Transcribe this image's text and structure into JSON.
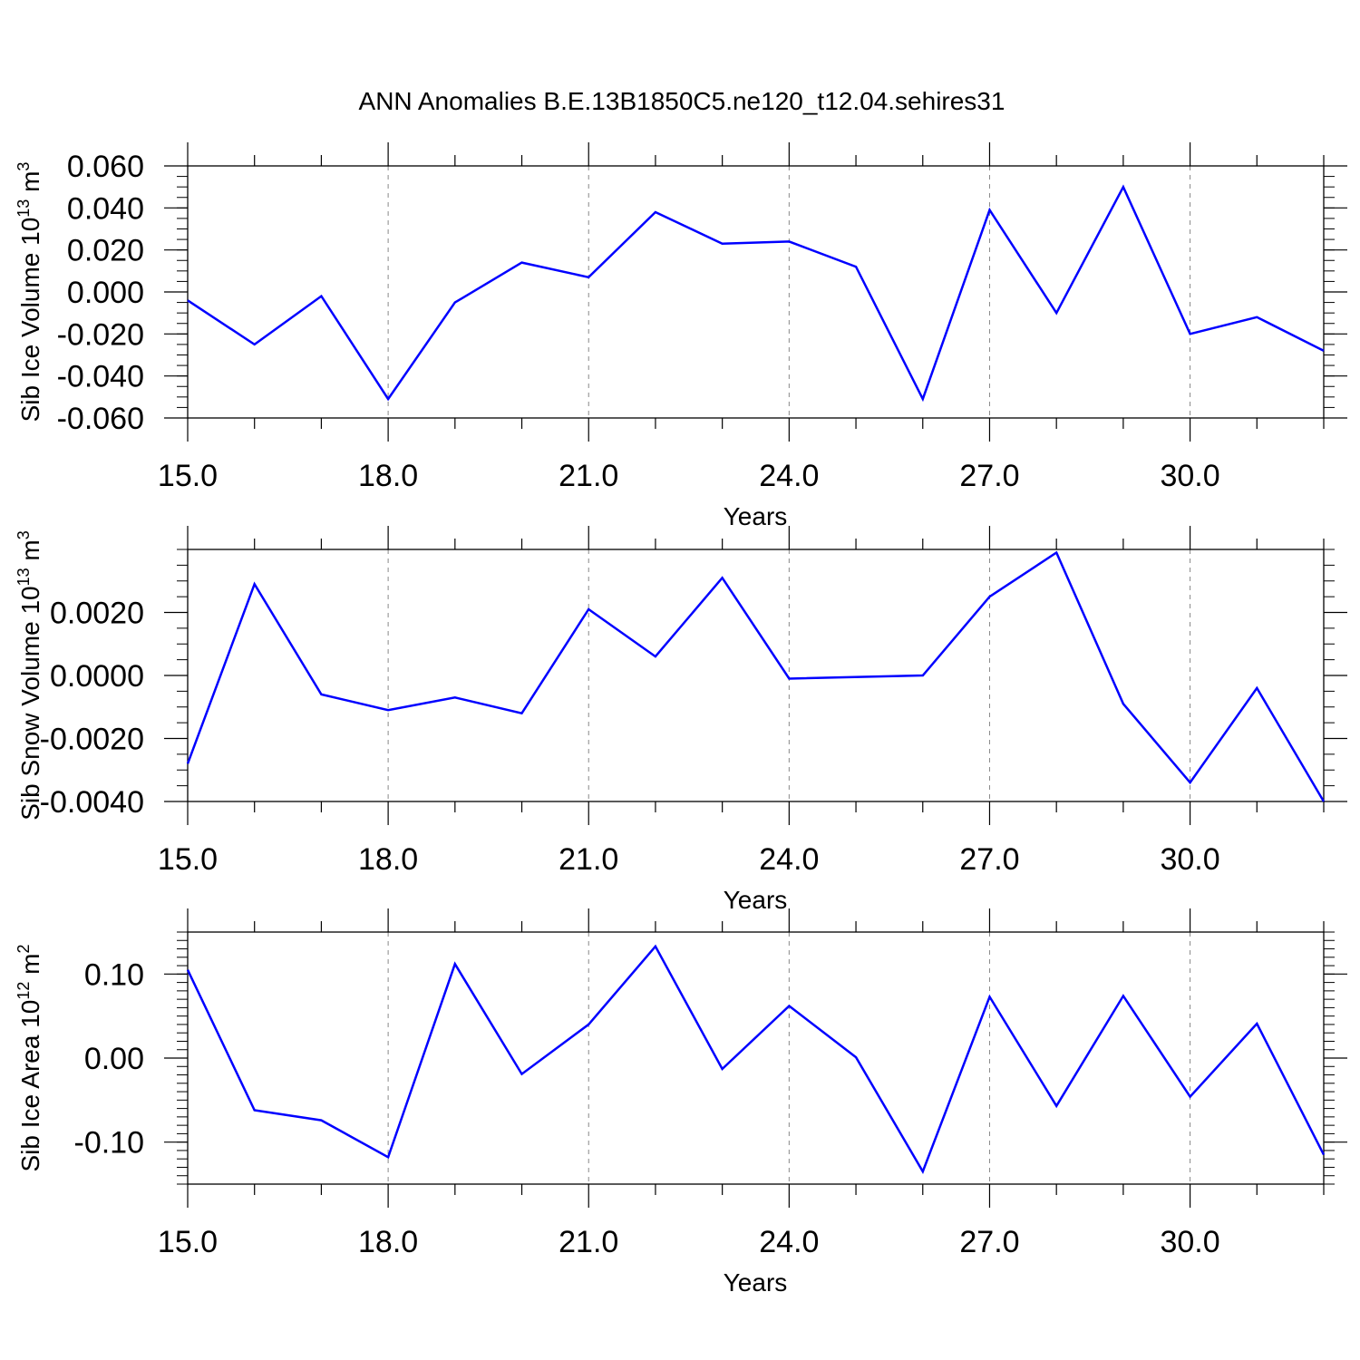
{
  "title": "ANN Anomalies B.E.13B1850C5.ne120_t12.04.sehires31",
  "colors": {
    "line": "#0000ff",
    "axes": "#000000",
    "grid": "#888888"
  },
  "chart_data": [
    {
      "type": "line",
      "xlabel": "Years",
      "ylabel": "Sib Ice Volume 10",
      "ylabel_sup": "13",
      "ylabel_unit": " m",
      "ylabel_unit_sup": "3",
      "xlim": [
        15,
        32
      ],
      "ylim": [
        -0.06,
        0.06
      ],
      "xticks": [
        15,
        18,
        21,
        24,
        27,
        30
      ],
      "xtick_labels": [
        "15.0",
        "18.0",
        "21.0",
        "24.0",
        "27.0",
        "30.0"
      ],
      "yticks": [
        -0.06,
        -0.04,
        -0.02,
        0,
        0.02,
        0.04,
        0.06
      ],
      "ytick_labels": [
        "-0.060",
        "-0.040",
        "-0.020",
        "0.000",
        "0.020",
        "0.040",
        "0.060"
      ],
      "grid": "vertical dashed at major x ticks",
      "x": [
        15,
        16,
        17,
        18,
        19,
        20,
        21,
        22,
        23,
        24,
        25,
        26,
        27,
        28,
        29,
        30,
        31,
        32
      ],
      "values": [
        -0.004,
        -0.025,
        -0.002,
        -0.051,
        -0.005,
        0.014,
        0.007,
        0.038,
        0.023,
        0.024,
        0.012,
        -0.051,
        0.039,
        -0.01,
        0.05,
        -0.02,
        -0.012,
        -0.028
      ]
    },
    {
      "type": "line",
      "xlabel": "Years",
      "ylabel": "Sib Snow Volume 10",
      "ylabel_sup": "13",
      "ylabel_unit": " m",
      "ylabel_unit_sup": "3",
      "xlim": [
        15,
        32
      ],
      "ylim": [
        -0.004,
        0.004
      ],
      "xticks": [
        15,
        18,
        21,
        24,
        27,
        30
      ],
      "xtick_labels": [
        "15.0",
        "18.0",
        "21.0",
        "24.0",
        "27.0",
        "30.0"
      ],
      "yticks": [
        -0.004,
        -0.002,
        0,
        0.002
      ],
      "ytick_labels": [
        "-0.0040",
        "-0.0020",
        "0.0000",
        "0.0020"
      ],
      "grid": "vertical dashed at major x ticks",
      "x": [
        15,
        16,
        17,
        18,
        19,
        20,
        21,
        22,
        23,
        24,
        26,
        27,
        28,
        29,
        30,
        31,
        32
      ],
      "values": [
        -0.0028,
        0.0029,
        -0.0006,
        -0.0011,
        -0.0007,
        -0.0012,
        0.0021,
        0.0006,
        0.0031,
        -0.0001,
        0.0,
        0.0025,
        0.0039,
        -0.0009,
        -0.0034,
        -0.0004,
        -0.004
      ]
    },
    {
      "type": "line",
      "xlabel": "Years",
      "ylabel": "Sib Ice Area 10",
      "ylabel_sup": "12",
      "ylabel_unit": " m",
      "ylabel_unit_sup": "2",
      "xlim": [
        15,
        32
      ],
      "ylim": [
        -0.15,
        0.15
      ],
      "xticks": [
        15,
        18,
        21,
        24,
        27,
        30
      ],
      "xtick_labels": [
        "15.0",
        "18.0",
        "21.0",
        "24.0",
        "27.0",
        "30.0"
      ],
      "yticks": [
        -0.1,
        0,
        0.1
      ],
      "ytick_labels": [
        "-0.10",
        "0.00",
        "0.10"
      ],
      "grid": "vertical dashed at major x ticks",
      "x": [
        15,
        16,
        17,
        18,
        19,
        20,
        21,
        22,
        23,
        24,
        25,
        26,
        27,
        28,
        29,
        30,
        31,
        32
      ],
      "values": [
        0.105,
        -0.062,
        -0.074,
        -0.118,
        0.112,
        -0.019,
        0.04,
        0.133,
        -0.013,
        0.062,
        0.001,
        -0.135,
        0.073,
        -0.057,
        0.074,
        -0.046,
        0.041,
        -0.115
      ]
    }
  ]
}
